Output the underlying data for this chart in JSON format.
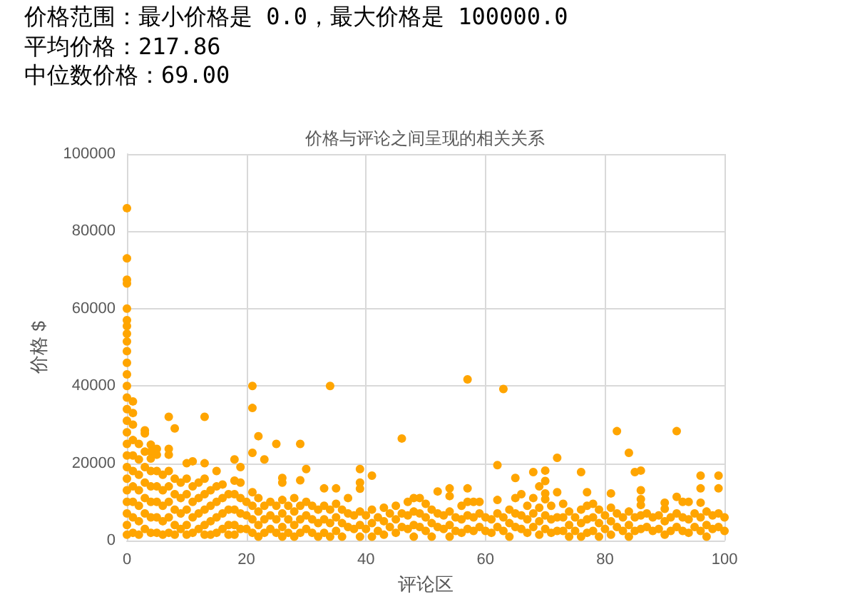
{
  "chart_data": {
    "type": "scatter",
    "title": "价格与评论之间呈现的相关关系",
    "xlabel": "评论区",
    "ylabel": "价格 $",
    "annotations": [
      "价格范围：最小价格是 0.0，最大价格是 100000.0",
      "平均价格：217.86",
      "中位数价格：69.00"
    ],
    "color": "#ffa500",
    "marker": "circle",
    "grid": true,
    "xlim": [
      0,
      100
    ],
    "xticks": [
      0,
      20,
      40,
      60,
      80,
      100
    ],
    "ylim": [
      0,
      100000
    ],
    "yticks": [
      0,
      20000,
      40000,
      60000,
      80000,
      100000
    ],
    "x": [
      0,
      0,
      0,
      0,
      0,
      0,
      0,
      0,
      0,
      0,
      0,
      0,
      0,
      0,
      0,
      0,
      0,
      0,
      0,
      0,
      0,
      0,
      0,
      0,
      0,
      0,
      1,
      1,
      1,
      1,
      1,
      1,
      1,
      1,
      1,
      1,
      2,
      2,
      2,
      2,
      2,
      2,
      2,
      3,
      3,
      3,
      3,
      3,
      3,
      3,
      3,
      4,
      4,
      4,
      4,
      4,
      4,
      4,
      4,
      5,
      5,
      5,
      5,
      5,
      5,
      5,
      6,
      6,
      6,
      6,
      6,
      7,
      7,
      7,
      7,
      7,
      7,
      7,
      7,
      8,
      8,
      8,
      8,
      8,
      8,
      9,
      9,
      9,
      9,
      10,
      10,
      10,
      10,
      10,
      10,
      11,
      11,
      11,
      11,
      11,
      12,
      12,
      12,
      12,
      13,
      13,
      13,
      13,
      13,
      13,
      13,
      14,
      14,
      14,
      14,
      15,
      15,
      15,
      15,
      15,
      16,
      16,
      16,
      16,
      17,
      17,
      17,
      17,
      18,
      18,
      18,
      18,
      18,
      18,
      19,
      19,
      19,
      19,
      19,
      20,
      20,
      20,
      21,
      21,
      21,
      21,
      21,
      21,
      21,
      22,
      22,
      22,
      22,
      22,
      23,
      23,
      23,
      23,
      24,
      24,
      24,
      25,
      25,
      25,
      25,
      26,
      26,
      26,
      26,
      26,
      26,
      27,
      27,
      27,
      28,
      28,
      28,
      28,
      29,
      29,
      29,
      29,
      29,
      30,
      30,
      30,
      30,
      31,
      31,
      31,
      32,
      32,
      32,
      33,
      33,
      33,
      33,
      34,
      34,
      34,
      34,
      35,
      35,
      35,
      35,
      36,
      36,
      36,
      37,
      37,
      37,
      38,
      38,
      39,
      39,
      39,
      39,
      39,
      39,
      40,
      40,
      41,
      41,
      41,
      41,
      42,
      42,
      43,
      43,
      43,
      44,
      44,
      45,
      45,
      45,
      46,
      46,
      46,
      47,
      47,
      47,
      48,
      48,
      48,
      48,
      49,
      49,
      49,
      50,
      50,
      50,
      51,
      51,
      51,
      52,
      52,
      52,
      53,
      53,
      54,
      54,
      54,
      54,
      54,
      55,
      55,
      56,
      56,
      56,
      57,
      57,
      57,
      57,
      57,
      58,
      58,
      58,
      59,
      59,
      59,
      60,
      60,
      61,
      61,
      62,
      62,
      62,
      62,
      63,
      63,
      63,
      64,
      64,
      64,
      65,
      65,
      65,
      65,
      66,
      66,
      66,
      67,
      67,
      67,
      68,
      68,
      68,
      68,
      69,
      69,
      69,
      69,
      70,
      70,
      70,
      70,
      70,
      70,
      71,
      71,
      71,
      72,
      72,
      72,
      72,
      73,
      73,
      73,
      74,
      74,
      74,
      75,
      75,
      76,
      76,
      76,
      76,
      77,
      77,
      77,
      77,
      78,
      78,
      78,
      79,
      79,
      79,
      80,
      80,
      81,
      81,
      81,
      81,
      82,
      82,
      82,
      83,
      83,
      84,
      84,
      84,
      84,
      85,
      85,
      85,
      86,
      86,
      86,
      86,
      86,
      86,
      87,
      87,
      88,
      88,
      89,
      89,
      90,
      90,
      90,
      90,
      91,
      91,
      92,
      92,
      92,
      92,
      93,
      93,
      93,
      94,
      94,
      94,
      95,
      95,
      96,
      96,
      96,
      96,
      96,
      97,
      97,
      97,
      98,
      98,
      99,
      99,
      99,
      99,
      100,
      100
    ],
    "values": [
      86000,
      73000,
      67500,
      66500,
      60000,
      57000,
      55500,
      53500,
      51500,
      49000,
      46000,
      43000,
      40000,
      37000,
      34000,
      31000,
      28000,
      25000,
      22000,
      19000,
      16000,
      13000,
      10000,
      7000,
      4000,
      1500,
      36000,
      33000,
      30000,
      26000,
      22000,
      18000,
      14000,
      10000,
      6000,
      2000,
      25000,
      21000,
      17000,
      13000,
      9000,
      5000,
      1500,
      28500,
      27700,
      23000,
      19000,
      15000,
      11000,
      7000,
      3000,
      24800,
      23000,
      21200,
      18000,
      14000,
      10000,
      6000,
      2000,
      23700,
      22200,
      18000,
      14000,
      10000,
      6000,
      2000,
      17000,
      13000,
      9000,
      5000,
      1500,
      32000,
      23700,
      22200,
      18000,
      14000,
      10000,
      6000,
      2000,
      29000,
      16000,
      12000,
      8000,
      4000,
      1500,
      15000,
      11000,
      7000,
      3000,
      20000,
      16000,
      12000,
      8000,
      4000,
      1500,
      20500,
      14000,
      10000,
      6000,
      2000,
      15000,
      11000,
      7000,
      3000,
      32000,
      20000,
      16000,
      12000,
      8000,
      4000,
      1500,
      13000,
      9000,
      5000,
      1500,
      18000,
      14000,
      10000,
      6000,
      2000,
      14500,
      11000,
      7000,
      3000,
      12000,
      8000,
      4000,
      1500,
      21000,
      15500,
      12000,
      8000,
      4000,
      1500,
      19000,
      15000,
      11000,
      7000,
      3000,
      10000,
      6500,
      3000,
      40000,
      34300,
      22700,
      12500,
      9000,
      5500,
      2000,
      27000,
      11000,
      7500,
      4000,
      1000,
      21000,
      9000,
      5500,
      2000,
      10000,
      6500,
      3000,
      25000,
      9000,
      5500,
      2000,
      16200,
      15000,
      10500,
      7000,
      3500,
      1000,
      9000,
      5500,
      2000,
      11000,
      7500,
      4000,
      1000,
      25000,
      15600,
      9000,
      5500,
      2000,
      18500,
      10000,
      6500,
      3000,
      9000,
      5500,
      2000,
      8000,
      4500,
      1000,
      13500,
      9000,
      5500,
      2000,
      40000,
      8000,
      4500,
      1000,
      13500,
      9500,
      6000,
      2500,
      8000,
      4500,
      1000,
      11000,
      7000,
      3500,
      6500,
      3000,
      18500,
      15000,
      13400,
      7500,
      4000,
      1000,
      6500,
      3000,
      16800,
      8000,
      4500,
      1000,
      6000,
      2500,
      8500,
      5000,
      1500,
      7000,
      3500,
      9000,
      5500,
      2000,
      26400,
      7000,
      3500,
      10000,
      6500,
      3000,
      11000,
      7500,
      4000,
      1000,
      11000,
      7000,
      3500,
      9500,
      6000,
      2500,
      8000,
      4500,
      1000,
      12700,
      7000,
      3500,
      6500,
      3000,
      13500,
      11500,
      7500,
      4000,
      1000,
      6000,
      2500,
      9000,
      5500,
      2000,
      41700,
      13500,
      10000,
      6500,
      3000,
      10000,
      6000,
      2500,
      10000,
      7000,
      3500,
      6000,
      2500,
      5500,
      2000,
      19500,
      10500,
      7000,
      3500,
      39200,
      6000,
      2500,
      8000,
      4500,
      1000,
      16200,
      11000,
      7000,
      3500,
      12000,
      6500,
      3000,
      9000,
      5500,
      2000,
      17700,
      11000,
      7000,
      3500,
      14000,
      8500,
      5000,
      1500,
      18100,
      15400,
      12200,
      10700,
      6500,
      3000,
      9000,
      5500,
      2000,
      21400,
      12500,
      6000,
      2500,
      9500,
      6000,
      2500,
      7500,
      4000,
      1000,
      6000,
      2500,
      17700,
      8000,
      4500,
      1000,
      12500,
      9000,
      5500,
      2000,
      9500,
      6000,
      2500,
      8000,
      4500,
      1000,
      6500,
      3000,
      12200,
      8500,
      5000,
      1500,
      28300,
      7000,
      3500,
      6000,
      2500,
      22700,
      7500,
      4000,
      1000,
      17700,
      6000,
      2500,
      18100,
      13000,
      10700,
      9200,
      6500,
      3000,
      7000,
      3500,
      6000,
      2500,
      6500,
      3000,
      9800,
      8200,
      5000,
      1500,
      6000,
      2500,
      28300,
      11300,
      7000,
      3500,
      10000,
      6000,
      2500,
      10000,
      5500,
      2000,
      7000,
      3500,
      16800,
      13500,
      9800,
      6000,
      2500,
      7500,
      4000,
      1000,
      6500,
      3000,
      16800,
      13500,
      7000,
      3500,
      6000,
      2500
    ]
  }
}
